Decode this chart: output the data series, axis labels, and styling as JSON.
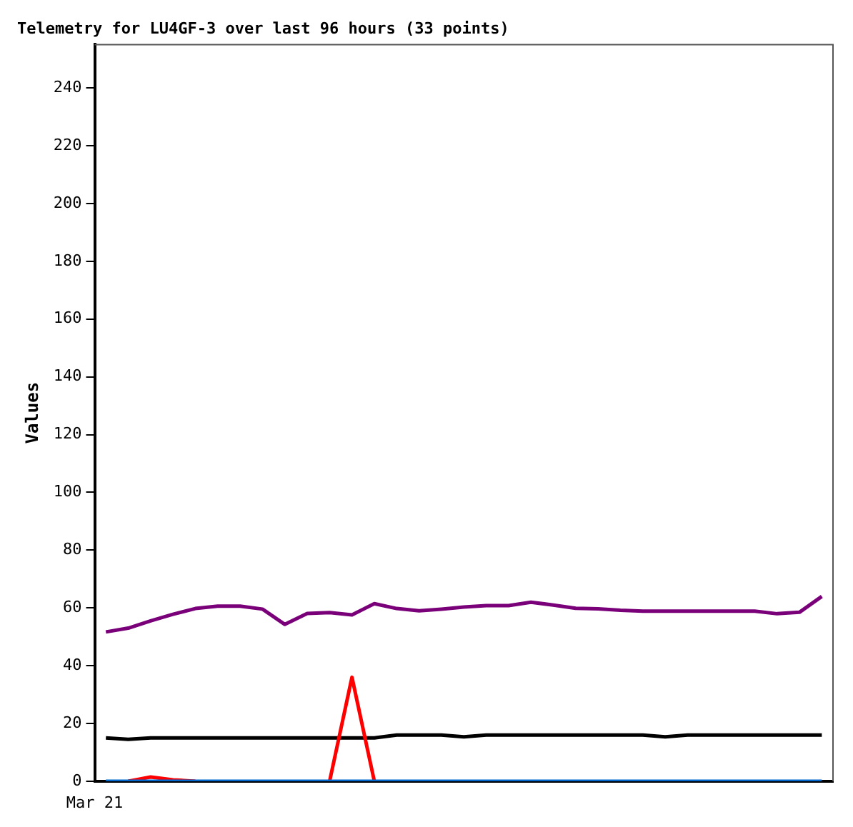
{
  "chart_data": {
    "type": "line",
    "title": "Telemetry for LU4GF-3 over last 96 hours (33 points)",
    "ylabel": "Values",
    "annotations": [
      "Mar 21"
    ],
    "ylim": [
      0,
      255
    ],
    "yticks": [
      0,
      20,
      40,
      60,
      80,
      100,
      120,
      140,
      160,
      180,
      200,
      220,
      240
    ],
    "grid": false,
    "legend": false,
    "marker": "none",
    "line_style": "solid",
    "categories": [
      null,
      null,
      null,
      null,
      null,
      null,
      null,
      null,
      null,
      null,
      null,
      null,
      null,
      null,
      null,
      null,
      null,
      null,
      null,
      null,
      null,
      null,
      null,
      null,
      null,
      null,
      null,
      null,
      null,
      null,
      null,
      null,
      null
    ],
    "series": [
      {
        "color": "#7a007a",
        "values": [
          51.7,
          53,
          55.5,
          57.8,
          59.8,
          60.6,
          60.6,
          59.6,
          54.3,
          58.1,
          58.4,
          57.6,
          61.5,
          59.8,
          59,
          59.6,
          60.3,
          60.8,
          60.8,
          62,
          61,
          59.9,
          59.7,
          59.2,
          58.9,
          58.9,
          58.9,
          58.9,
          58.9,
          58.9,
          58,
          58.5,
          64
        ]
      },
      {
        "color": "#000000",
        "values": [
          15,
          14.5,
          15,
          15,
          15,
          15,
          15,
          15,
          15,
          15,
          15,
          15,
          15,
          16,
          16,
          16,
          15.4,
          16,
          16,
          16,
          16,
          16,
          16,
          16,
          16,
          15.4,
          16,
          16,
          16,
          16,
          16,
          16,
          16
        ]
      },
      {
        "color": "#ff0000",
        "values": [
          null,
          0,
          1.5,
          0.5,
          0,
          null,
          null,
          null,
          null,
          null,
          0,
          36,
          0,
          null,
          null,
          null,
          null,
          null,
          null,
          null,
          null,
          null,
          null,
          null,
          null,
          null,
          null,
          null,
          null,
          null,
          null,
          null,
          null
        ]
      },
      {
        "color": "#0066cc",
        "values": [
          0,
          0,
          0,
          0,
          0,
          0,
          0,
          0,
          0,
          0,
          0,
          0,
          0,
          0,
          0,
          0,
          0,
          0,
          0,
          0,
          0,
          0,
          0,
          0,
          0,
          0,
          0,
          0,
          0,
          0,
          0,
          0,
          0
        ]
      }
    ]
  }
}
